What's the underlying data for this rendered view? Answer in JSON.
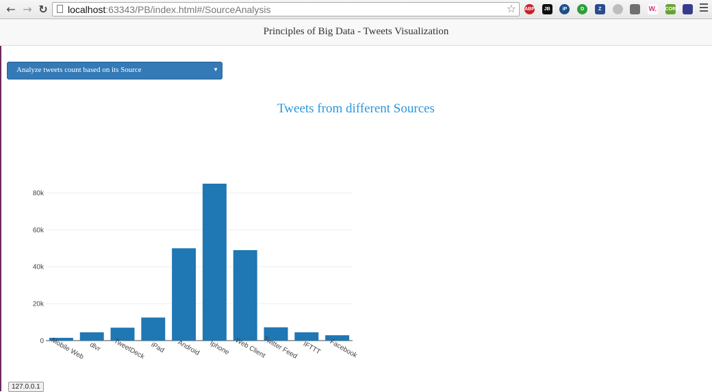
{
  "browser": {
    "url_host": "localhost",
    "url_rest": ":63343/PB/index.html#/SourceAnalysis",
    "extensions": [
      {
        "name": "adblock-plus-icon",
        "text": "ABP",
        "color": "#c8202a",
        "round": true
      },
      {
        "name": "jb-extension-icon",
        "text": "JB",
        "color": "#111111",
        "round": false
      },
      {
        "name": "ip-extension-icon",
        "text": "iP",
        "color": "#1d4e89",
        "round": true
      },
      {
        "name": "green-d-extension-icon",
        "text": "D",
        "color": "#2e9d3a",
        "round": true
      },
      {
        "name": "z-extension-icon",
        "text": "Z",
        "color": "#2a4b8d",
        "round": false
      },
      {
        "name": "feather-extension-icon",
        "text": "",
        "color": "#bdbdbd",
        "round": true
      },
      {
        "name": "bookmark-extension-icon",
        "text": "",
        "color": "#707070",
        "round": false
      },
      {
        "name": "w-extension-icon",
        "text": "W.",
        "color": "#ffffff",
        "round": false
      },
      {
        "name": "cors-extension-icon",
        "text": "CORS",
        "color": "#67a332",
        "round": false
      },
      {
        "name": "flag-extension-icon",
        "text": "",
        "color": "#3a3a8c",
        "round": false
      }
    ]
  },
  "header": {
    "title": "Principles of Big Data - Tweets Visualization"
  },
  "analysis_select": {
    "selected": "Analyze tweets count based on its Source"
  },
  "chart_title": "Tweets from different Sources",
  "chart_data": {
    "type": "bar",
    "title": "Tweets from different Sources",
    "categories": [
      "Mobile Web",
      "dlvr",
      "TweetDeck",
      "iPad",
      "Android",
      "Iphone",
      "Web Client",
      "Twitter Feed",
      "IFTTT",
      "Facebook"
    ],
    "values": [
      1500,
      4500,
      7000,
      12500,
      50000,
      85000,
      49000,
      7200,
      4500,
      2900
    ],
    "ylim": [
      0,
      85000
    ],
    "yticks": [
      0,
      20000,
      40000,
      60000,
      80000
    ],
    "ytick_labels": [
      "0",
      "20k",
      "40k",
      "60k",
      "80k"
    ],
    "grid": true,
    "bar_color": "#1f77b4"
  },
  "status": {
    "host": "127.0.0.1"
  }
}
